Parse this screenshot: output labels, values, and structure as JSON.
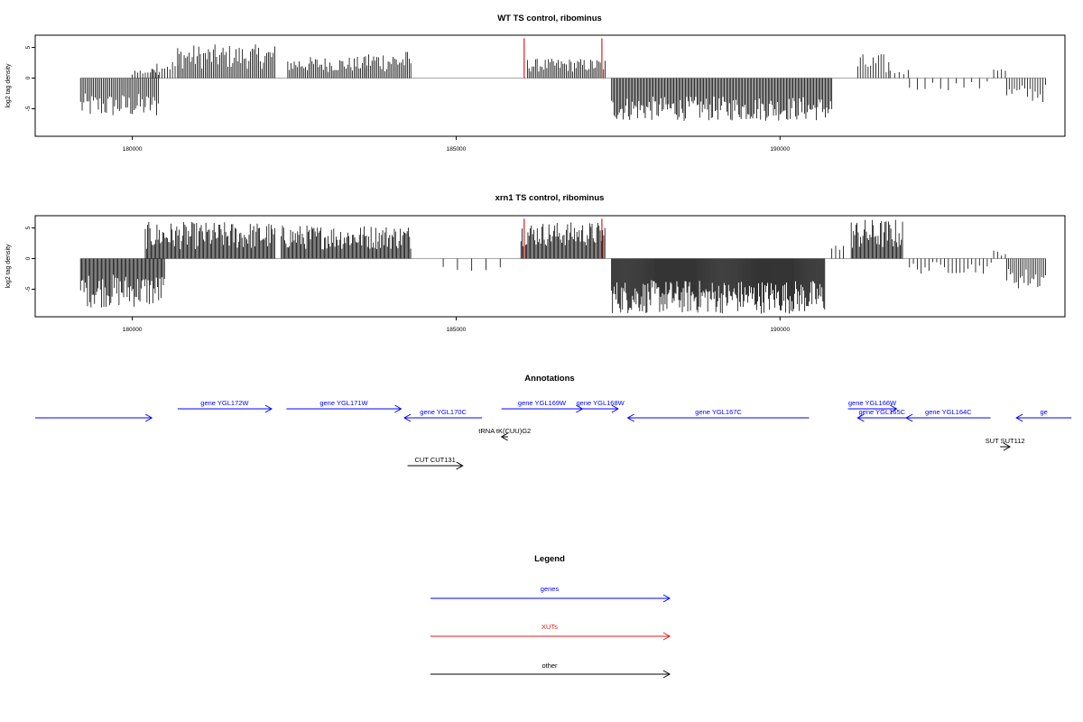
{
  "chart_data": [
    {
      "type": "bar",
      "title": "WT TS control, ribominus",
      "ylabel": "log2 tag density",
      "xlim": [
        178500,
        194400
      ],
      "ylim": [
        -9.5,
        7
      ],
      "y_ticks": [
        5,
        0,
        -5
      ],
      "x_ticks": [
        180000,
        185000,
        190000
      ],
      "highlight_color": "#e41a1c",
      "highlight_positions": [
        186050,
        187250
      ],
      "highlight_height": 6.5,
      "segments": [
        {
          "start": 179200,
          "end": 180400,
          "min": -6.5,
          "max": -2.5,
          "step": 25
        },
        {
          "start": 180000,
          "end": 180400,
          "min": 0.5,
          "max": 1.5,
          "step": 40
        },
        {
          "start": 180300,
          "end": 180700,
          "min": 1.0,
          "max": 3.0,
          "step": 40
        },
        {
          "start": 180700,
          "end": 182200,
          "min": 1.5,
          "max": 5.5,
          "step": 25
        },
        {
          "start": 182400,
          "end": 183600,
          "min": 1.0,
          "max": 3.5,
          "step": 25
        },
        {
          "start": 183600,
          "end": 184300,
          "min": 1.0,
          "max": 4.5,
          "step": 25
        },
        {
          "start": 186100,
          "end": 187300,
          "min": 1.0,
          "max": 3.2,
          "step": 25
        },
        {
          "start": 187400,
          "end": 190800,
          "min": -7.0,
          "max": -3.0,
          "step": 20
        },
        {
          "start": 191200,
          "end": 191700,
          "min": 0.5,
          "max": 4.0,
          "step": 40
        },
        {
          "start": 191700,
          "end": 192000,
          "min": 0.5,
          "max": 1.5,
          "step": 70
        },
        {
          "start": 192000,
          "end": 193200,
          "min": -2.0,
          "max": -0.5,
          "step": 120
        },
        {
          "start": 193300,
          "end": 193500,
          "min": 1.0,
          "max": 2.0,
          "step": 60
        },
        {
          "start": 193500,
          "end": 194100,
          "min": -4.0,
          "max": -1.0,
          "step": 40
        }
      ]
    },
    {
      "type": "bar",
      "title": "xrn1 TS control, ribominus",
      "ylabel": "log2 tag density",
      "xlim": [
        178500,
        194400
      ],
      "ylim": [
        -9.5,
        7
      ],
      "y_ticks": [
        5,
        0,
        -5
      ],
      "x_ticks": [
        180000,
        185000,
        190000
      ],
      "highlight_color": "#e41a1c",
      "highlight_positions": [
        186050,
        187250
      ],
      "highlight_height": 6.5,
      "segments": [
        {
          "start": 179200,
          "end": 180500,
          "min": -8.0,
          "max": -2.5,
          "step": 18
        },
        {
          "start": 180200,
          "end": 182200,
          "min": 1.5,
          "max": 6.0,
          "step": 18
        },
        {
          "start": 182300,
          "end": 184300,
          "min": 1.5,
          "max": 5.5,
          "step": 18
        },
        {
          "start": 184800,
          "end": 185700,
          "min": -2.0,
          "max": -0.8,
          "step": 220
        },
        {
          "start": 186000,
          "end": 187300,
          "min": 2.0,
          "max": 6.0,
          "step": 18
        },
        {
          "start": 187400,
          "end": 190700,
          "min": -9.0,
          "max": -3.5,
          "step": 14
        },
        {
          "start": 190800,
          "end": 191000,
          "min": 1.0,
          "max": 2.5,
          "step": 60
        },
        {
          "start": 191100,
          "end": 191900,
          "min": 1.5,
          "max": 6.5,
          "step": 18
        },
        {
          "start": 192000,
          "end": 193300,
          "min": -2.5,
          "max": -0.5,
          "step": 60
        },
        {
          "start": 193300,
          "end": 193500,
          "min": 0.5,
          "max": 1.5,
          "step": 60
        },
        {
          "start": 193500,
          "end": 194100,
          "min": -5.0,
          "max": -1.5,
          "step": 30
        }
      ]
    }
  ],
  "annotations": {
    "title": "Annotations",
    "items": [
      {
        "label": "",
        "start": 178500,
        "end": 180300,
        "dir": 1,
        "color": "#0000ff",
        "row": 1
      },
      {
        "label": "gene YGL172W",
        "start": 180700,
        "end": 182150,
        "dir": 1,
        "color": "#0000ff",
        "row": 0
      },
      {
        "label": "gene YGL171W",
        "start": 182380,
        "end": 184150,
        "dir": 1,
        "color": "#0000ff",
        "row": 0
      },
      {
        "label": "gene YGL170C",
        "start": 184200,
        "end": 185400,
        "dir": -1,
        "color": "#0000ff",
        "row": 1
      },
      {
        "label": "gene YGL169W",
        "start": 185700,
        "end": 186950,
        "dir": 1,
        "color": "#0000ff",
        "row": 0
      },
      {
        "label": "gene YGL168W",
        "start": 186950,
        "end": 187500,
        "dir": 1,
        "color": "#0000ff",
        "row": 0
      },
      {
        "label": "gene YGL167C",
        "start": 187650,
        "end": 190450,
        "dir": -1,
        "color": "#0000ff",
        "row": 1
      },
      {
        "label": "gene YGL166W",
        "start": 191050,
        "end": 191800,
        "dir": 1,
        "color": "#0000ff",
        "row": 0
      },
      {
        "label": "gene YGL165C",
        "start": 191200,
        "end": 191950,
        "dir": -1,
        "color": "#0000ff",
        "row": 1
      },
      {
        "label": "gene YGL164C",
        "start": 191950,
        "end": 193250,
        "dir": -1,
        "color": "#0000ff",
        "row": 1
      },
      {
        "label": "ge",
        "start": 193650,
        "end": 194500,
        "dir": -1,
        "color": "#0000ff",
        "row": 1
      },
      {
        "label": "tRNA tK(CUU)G2",
        "start": 185700,
        "end": 185800,
        "dir": -1,
        "color": "#000000",
        "row": 2
      },
      {
        "label": "SUT SUT112",
        "start": 193400,
        "end": 193550,
        "dir": 1,
        "color": "#000000",
        "row": 3
      },
      {
        "label": "CUT CUT131",
        "start": 184250,
        "end": 185100,
        "dir": 1,
        "color": "#000000",
        "row": 4
      }
    ]
  },
  "legend": {
    "title": "Legend",
    "items": [
      {
        "label": "genes",
        "color": "#0000ff"
      },
      {
        "label": "XUTs",
        "color": "#e41a1c"
      },
      {
        "label": "other",
        "color": "#000000"
      }
    ]
  }
}
